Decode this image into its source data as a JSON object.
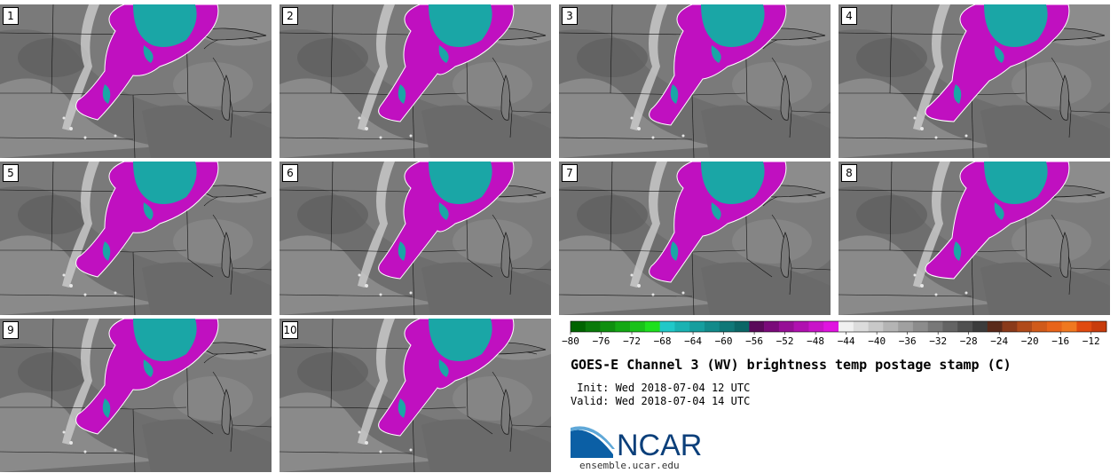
{
  "panels": [
    {
      "label": "1",
      "variant": 0
    },
    {
      "label": "2",
      "variant": 1
    },
    {
      "label": "3",
      "variant": 2
    },
    {
      "label": "4",
      "variant": 3
    },
    {
      "label": "5",
      "variant": 0
    },
    {
      "label": "6",
      "variant": 1
    },
    {
      "label": "7",
      "variant": 2
    },
    {
      "label": "8",
      "variant": 3
    },
    {
      "label": "9",
      "variant": 0
    },
    {
      "label": "10",
      "variant": 1
    }
  ],
  "title": "GOES-E Channel 3 (WV) brightness temp postage stamp (C)",
  "init_text": " Init: Wed 2018-07-04 12 UTC",
  "valid_text": "Valid: Wed 2018-07-04 14 UTC",
  "url": "ensemble.ucar.edu",
  "logo_text": "NCAR",
  "colorbar": {
    "tick_labels": [
      "−80",
      "−76",
      "−72",
      "−68",
      "−64",
      "−60",
      "−56",
      "−52",
      "−48",
      "−44",
      "−40",
      "−36",
      "−32",
      "−28",
      "−24",
      "−20",
      "−16",
      "−12"
    ],
    "colors": [
      "#006400",
      "#0a7a0a",
      "#0f8f0f",
      "#14a814",
      "#19c219",
      "#1ee01e",
      "#20c8c8",
      "#1ab2b2",
      "#169e9e",
      "#128a8a",
      "#0f7878",
      "#0b6666",
      "#5a0a5a",
      "#7a0a7a",
      "#960e96",
      "#b010b0",
      "#c814c8",
      "#e014e0",
      "#f0f0f0",
      "#dcdcdc",
      "#c8c8c8",
      "#b4b4b4",
      "#a0a0a0",
      "#8c8c8c",
      "#787878",
      "#646464",
      "#505050",
      "#3c3c3c",
      "#5a2a1a",
      "#8a3a1a",
      "#b04a1a",
      "#d05a1a",
      "#e8641a",
      "#f07820",
      "#e04a10",
      "#c83c0c"
    ],
    "range": [
      -80,
      -10
    ]
  },
  "colors": {
    "moist": "#c010c0",
    "cold": "#1aa6a6",
    "dry_light": "#c8c8c8",
    "background": "#7a7a7a"
  }
}
